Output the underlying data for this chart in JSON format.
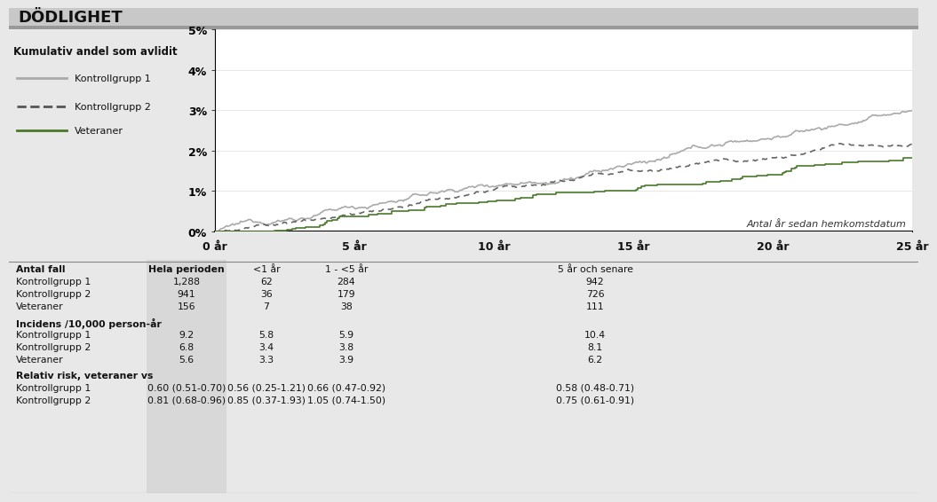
{
  "title": "DÖDLIGHET",
  "ylabel": "Kumulativ andel som avlidit",
  "xlabel": "Antal år sedan hemkomstdatum",
  "ytick_labels": [
    "0%",
    "1%",
    "2%",
    "3%",
    "4%",
    "5%"
  ],
  "xtick_labels": [
    "0 år",
    "5 år",
    "10 år",
    "15 år",
    "20 år",
    "25 år"
  ],
  "xlim": [
    0,
    25
  ],
  "ylim": [
    0,
    5
  ],
  "legend": [
    {
      "label": "Kontrollgrupp 1",
      "color": "#aaaaaa",
      "linestyle": "solid"
    },
    {
      "label": "Kontrollgrupp 2",
      "color": "#555555",
      "linestyle": "dashed"
    },
    {
      "label": "Veteraner",
      "color": "#4a7a2a",
      "linestyle": "solid"
    }
  ],
  "background_color": "#e8e8e8",
  "plot_bg": "#ffffff",
  "title_bg": "#c8c8c8",
  "table_shaded_bg": "#d8d8d8",
  "table_rows": [
    {
      "section": "Antal fall",
      "is_bold": true,
      "rows": [
        {
          "label": "Kontrollgrupp 1",
          "hela": "1,288",
          "lt1": "62",
          "1to5": "284",
          "5plus": "942"
        },
        {
          "label": "Kontrollgrupp 2",
          "hela": "941",
          "lt1": "36",
          "1to5": "179",
          "5plus": "726"
        },
        {
          "label": "Veteraner",
          "hela": "156",
          "lt1": "7",
          "1to5": "38",
          "5plus": "111"
        }
      ]
    },
    {
      "section": "Incidens /10,000 person-år",
      "is_bold": true,
      "rows": [
        {
          "label": "Kontrollgrupp 1",
          "hela": "9.2",
          "lt1": "5.8",
          "1to5": "5.9",
          "5plus": "10.4"
        },
        {
          "label": "Kontrollgrupp 2",
          "hela": "6.8",
          "lt1": "3.4",
          "1to5": "3.8",
          "5plus": "8.1"
        },
        {
          "label": "Veteraner",
          "hela": "5.6",
          "lt1": "3.3",
          "1to5": "3.9",
          "5plus": "6.2"
        }
      ]
    },
    {
      "section": "Relativ risk, veteraner vs",
      "is_bold": true,
      "rows": [
        {
          "label": "Kontrollgrupp 1",
          "hela": "0.60 (0.51-0.70)",
          "lt1": "0.56 (0.25-1.21)",
          "1to5": "0.66 (0.47-0.92)",
          "5plus": "0.58 (0.48-0.71)"
        },
        {
          "label": "Kontrollgrupp 2",
          "hela": "0.81 (0.68-0.96)",
          "lt1": "0.85 (0.37-1.93)",
          "1to5": "1.05 (0.74-1.50)",
          "5plus": "0.75 (0.61-0.91)"
        }
      ]
    }
  ]
}
